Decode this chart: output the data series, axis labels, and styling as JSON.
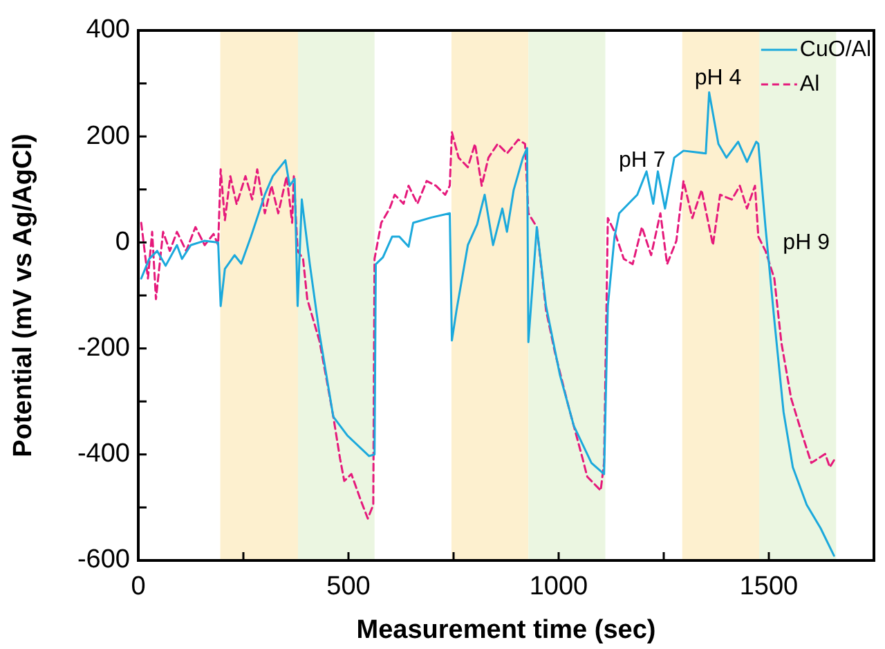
{
  "chart_data": {
    "type": "line",
    "xlabel": "Measurement time (sec)",
    "ylabel": "Potential (mV vs Ag/AgCl)",
    "xlim": [
      0,
      1750
    ],
    "xticks": [
      0,
      {
        "value": 250,
        "label": null
      },
      500,
      {
        "value": 750,
        "label": null
      },
      1000,
      {
        "value": 1250,
        "label": null
      },
      1500,
      {
        "value": 1750,
        "label": null
      }
    ],
    "ylim": [
      -600,
      400
    ],
    "yticks": [
      -600,
      {
        "value": -500,
        "label": null
      },
      -400,
      {
        "value": -300,
        "label": null
      },
      -200,
      {
        "value": -100,
        "label": null
      },
      0,
      {
        "value": 100,
        "label": null
      },
      200,
      {
        "value": 300,
        "label": null
      },
      400
    ],
    "legend": "top right",
    "marker": "none",
    "bands": [
      {
        "axis": "x",
        "from": 195,
        "to": 380,
        "color": "#fdf0cf"
      },
      {
        "axis": "x",
        "from": 380,
        "to": 562,
        "color": "#ebf6e1"
      },
      {
        "axis": "x",
        "from": 745,
        "to": 928,
        "color": "#fdf0cf"
      },
      {
        "axis": "x",
        "from": 928,
        "to": 1111,
        "color": "#ebf6e1"
      },
      {
        "axis": "x",
        "from": 1294,
        "to": 1477,
        "color": "#fdf0cf"
      },
      {
        "axis": "x",
        "from": 1477,
        "to": 1660,
        "color": "#ebf6e1"
      }
    ],
    "annotations": [
      "pH 7",
      "pH 4",
      "pH 9"
    ],
    "series": [
      {
        "name": "CuO/Al",
        "color": "#1ba9dc",
        "line_style": "solid",
        "x": [
          7,
          26,
          45,
          65,
          92,
          104,
          125,
          157,
          190,
          196,
          206,
          229,
          245,
          268,
          301,
          320,
          350,
          360,
          372,
          379,
          389,
          408,
          431,
          464,
          497,
          549,
          562,
          565,
          582,
          604,
          621,
          643,
          654,
          697,
          741,
          746,
          757,
          784,
          806,
          824,
          844,
          866,
          877,
          893,
          915,
          925,
          928,
          948,
          970,
          1003,
          1036,
          1078,
          1108,
          1117,
          1133,
          1144,
          1166,
          1187,
          1209,
          1225,
          1236,
          1253,
          1275,
          1297,
          1350,
          1358,
          1380,
          1399,
          1427,
          1448,
          1470,
          1475,
          1492,
          1513,
          1535,
          1557,
          1590,
          1623,
          1655
        ],
        "values": [
          -68,
          -31,
          -16,
          -44,
          -5,
          -31,
          -5,
          3,
          0,
          -120,
          -50,
          -24,
          -40,
          11,
          90,
          125,
          155,
          107,
          120,
          -120,
          81,
          -41,
          -172,
          -329,
          -364,
          -403,
          -400,
          -41,
          -28,
          11,
          11,
          -8,
          37,
          47,
          55,
          -185,
          -128,
          -5,
          34,
          90,
          -5,
          64,
          20,
          99,
          160,
          178,
          -188,
          29,
          -120,
          -250,
          -346,
          -416,
          -437,
          -120,
          11,
          55,
          73,
          90,
          134,
          73,
          134,
          64,
          160,
          173,
          168,
          283,
          186,
          160,
          190,
          152,
          190,
          186,
          29,
          -146,
          -320,
          -424,
          -495,
          -539,
          -591
        ]
      },
      {
        "name": "Al",
        "color": "#e5197b",
        "line_style": "dashed",
        "x": [
          7,
          23,
          33,
          42,
          59,
          75,
          92,
          114,
          136,
          158,
          179,
          190,
          196,
          206,
          219,
          234,
          255,
          271,
          283,
          301,
          317,
          333,
          353,
          366,
          370,
          379,
          392,
          402,
          431,
          448,
          464,
          480,
          490,
          507,
          529,
          546,
          559,
          562,
          578,
          598,
          610,
          631,
          643,
          664,
          686,
          708,
          730,
          741,
          746,
          762,
          784,
          801,
          817,
          833,
          855,
          877,
          904,
          920,
          928,
          948,
          970,
          991,
          1024,
          1057,
          1068,
          1100,
          1108,
          1117,
          1133,
          1155,
          1176,
          1198,
          1220,
          1242,
          1258,
          1280,
          1297,
          1318,
          1340,
          1367,
          1384,
          1412,
          1431,
          1448,
          1467,
          1475,
          1492,
          1513,
          1530,
          1553,
          1580,
          1601,
          1634,
          1645,
          1655
        ],
        "values": [
          37,
          -68,
          20,
          -107,
          20,
          -16,
          20,
          -16,
          29,
          -5,
          16,
          -5,
          138,
          42,
          125,
          72,
          125,
          81,
          138,
          55,
          107,
          55,
          125,
          37,
          125,
          -16,
          -31,
          -107,
          -186,
          -259,
          -329,
          -408,
          -450,
          -437,
          -486,
          -521,
          -495,
          -31,
          37,
          64,
          90,
          73,
          107,
          73,
          116,
          107,
          90,
          107,
          208,
          160,
          142,
          186,
          107,
          160,
          186,
          168,
          194,
          186,
          55,
          29,
          -128,
          -207,
          -311,
          -408,
          -442,
          -468,
          -416,
          46,
          20,
          -31,
          -41,
          29,
          -24,
          55,
          -41,
          3,
          116,
          46,
          99,
          -5,
          90,
          81,
          107,
          64,
          107,
          11,
          -16,
          -68,
          -190,
          -294,
          -364,
          -416,
          -399,
          -424,
          -411
        ]
      }
    ]
  }
}
